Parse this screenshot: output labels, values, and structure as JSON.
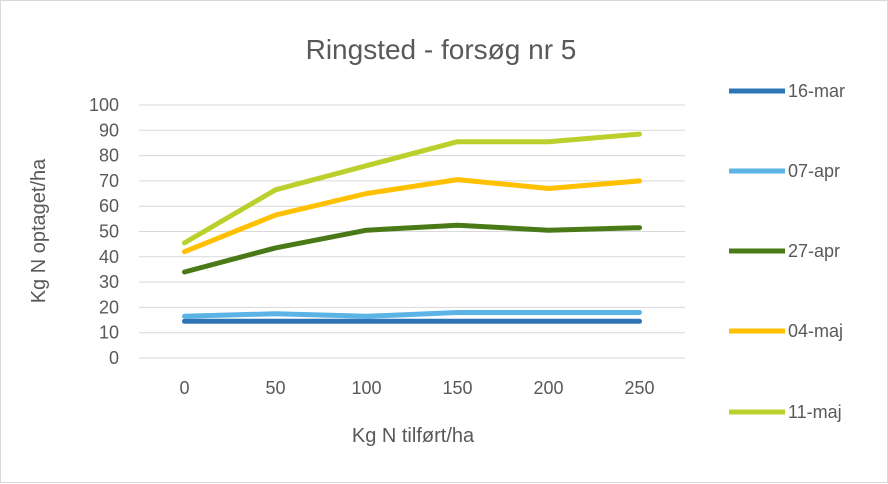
{
  "chart_data": {
    "type": "line",
    "title": "Ringsted - forsøg nr 5",
    "xlabel": "Kg N tilført/ha",
    "ylabel": "Kg N optaget/ha",
    "categories": [
      "0",
      "50",
      "100",
      "150",
      "200",
      "250"
    ],
    "ylim": [
      0,
      100
    ],
    "yticks": [
      "0",
      "10",
      "20",
      "30",
      "40",
      "50",
      "60",
      "70",
      "80",
      "90",
      "100"
    ],
    "grid": true,
    "legend": "right",
    "series": [
      {
        "name": "16-mar",
        "color": "#2e75b6",
        "values": [
          14.5,
          14.5,
          14.5,
          14.5,
          14.5,
          14.5
        ]
      },
      {
        "name": "07-apr",
        "color": "#5bb3e6",
        "values": [
          16.5,
          17.5,
          16.5,
          18,
          18,
          18
        ]
      },
      {
        "name": "27-apr",
        "color": "#4a7a17",
        "values": [
          34,
          43.5,
          50.5,
          52.5,
          50.5,
          51.5
        ]
      },
      {
        "name": "04-maj",
        "color": "#ffc000",
        "values": [
          42,
          56.5,
          65,
          70.5,
          67,
          70
        ]
      },
      {
        "name": "11-maj",
        "color": "#bcd02d",
        "values": [
          45.5,
          66.5,
          76,
          85.5,
          85.5,
          88.5
        ]
      }
    ]
  }
}
